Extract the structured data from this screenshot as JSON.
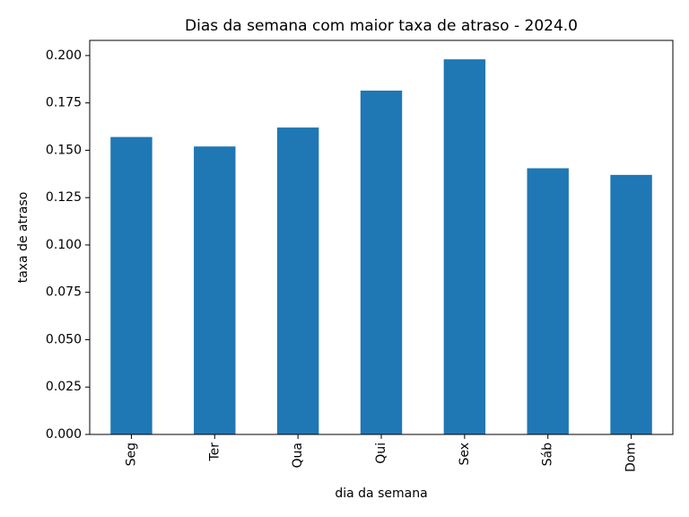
{
  "chart_data": {
    "type": "bar",
    "title": "Dias da semana com maior taxa de atraso - 2024.0",
    "xlabel": "dia da semana",
    "ylabel": "taxa de atraso",
    "categories": [
      "Seg",
      "Ter",
      "Qua",
      "Qui",
      "Sex",
      "Sáb",
      "Dom"
    ],
    "values": [
      0.157,
      0.152,
      0.162,
      0.1815,
      0.198,
      0.1405,
      0.137
    ],
    "ylim": [
      0,
      0.208
    ],
    "yticks": [
      "0.000",
      "0.025",
      "0.050",
      "0.075",
      "0.100",
      "0.125",
      "0.150",
      "0.175",
      "0.200"
    ],
    "bar_color": "#1f77b4",
    "grid": false,
    "legend": false
  }
}
